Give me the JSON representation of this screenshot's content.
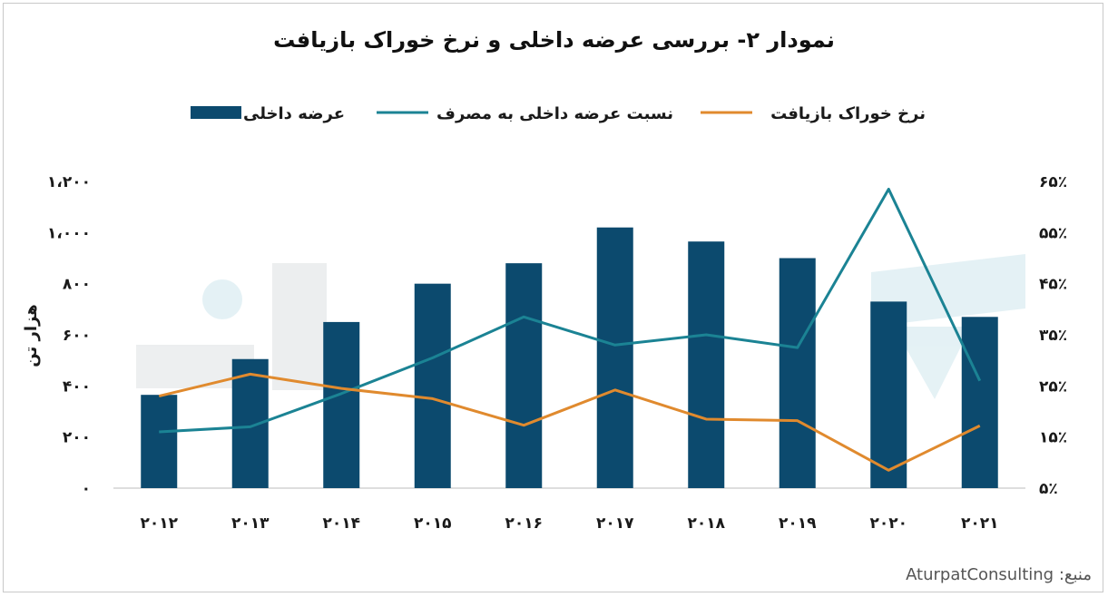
{
  "chart_data": {
    "type": "bar",
    "title": "نمودار ۲- بررسی عرضه داخلی و نرخ خوراک بازیافت",
    "ylabel": "هزار تن",
    "categories": [
      "2012",
      "2013",
      "2014",
      "2015",
      "2016",
      "2017",
      "2018",
      "2019",
      "2020",
      "2021"
    ],
    "y_left": {
      "ylim": [
        0,
        1200
      ],
      "ticks": [
        "۰",
        "۲۰۰",
        "۴۰۰",
        "۶۰۰",
        "۸۰۰",
        "۱،۰۰۰",
        "۱،۲۰۰"
      ],
      "tick_values": [
        0,
        200,
        400,
        600,
        800,
        1000,
        1200
      ]
    },
    "y_right": {
      "ylim": [
        5,
        65
      ],
      "ticks": [
        "۵٪",
        "۱۵٪",
        "۲۵٪",
        "۳۵٪",
        "۴۵٪",
        "۵۵٪",
        "۶۵٪"
      ],
      "tick_values": [
        5,
        15,
        25,
        35,
        45,
        55,
        65
      ]
    },
    "grid": false,
    "legend_position": "top",
    "series": [
      {
        "name": "عرضه داخلی",
        "type": "bar",
        "axis": "left",
        "color": "#0c4a6e",
        "values": [
          365,
          505,
          650,
          800,
          880,
          1020,
          965,
          900,
          730,
          670
        ]
      },
      {
        "name": "نسبت عرضه داخلی به مصرف",
        "type": "line",
        "axis": "right",
        "color": "#1b8394",
        "values": [
          16.0,
          17.0,
          23.5,
          30.5,
          38.5,
          33.0,
          35.0,
          32.5,
          63.5,
          26.0
        ]
      },
      {
        "name": "نرخ خوراک بازیافت",
        "type": "line",
        "axis": "right",
        "color": "#e08a2e",
        "values": [
          23.0,
          27.3,
          24.5,
          22.5,
          17.3,
          24.2,
          18.5,
          18.2,
          8.5,
          17.2
        ]
      }
    ]
  },
  "source": {
    "label": "منبع:",
    "name": "AturpatConsulting"
  }
}
